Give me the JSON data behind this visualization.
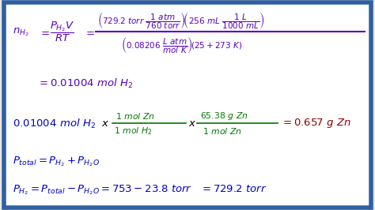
{
  "bg_color": "#e8e8e8",
  "border_color": "#3060a0",
  "inner_bg": "#ffffff",
  "purple": "#5500bb",
  "blue": "#0000cc",
  "green": "#007700",
  "red": "#880000",
  "figsize": [
    4.74,
    2.66
  ],
  "dpi": 100,
  "line1_parts": {
    "lhs": "$n_{H_2} = \\dfrac{P_{H_2}V}{RT} = $",
    "num": "$\\left(729.2\\ torr\\ \\dfrac{1\\ atm}{760\\ torr}\\right)\\!\\left(256\\ mL\\ \\dfrac{1\\ L}{1000\\ mL}\\right)$",
    "den": "$\\left(0.08206\\ \\dfrac{L\\ atm}{mol\\ K}\\right)\\!(25+273\\ K)$"
  },
  "line2": "$= 0.01004\\ mol\\ H_2$",
  "line3_blue": "$0.01004\\ mol\\ H_2$",
  "line3_x": "$x$",
  "line3_frac1_num": "$1\\ mol\\ Zn$",
  "line3_frac1_den": "$1\\ mol\\ H_2$",
  "line3_frac2_num": "$65.38\\ g\\ Zn$",
  "line3_frac2_den": "$1\\ mol\\ Zn$",
  "line3_result": "$= 0.657\\ g\\ Zn$",
  "line4": "$P_{total} = P_{H_2} + P_{H_2O}$",
  "line5": "$P_{H_2} = P_{total} - P_{H_2O} = 753 - 23.8\\ torr\\ \\ \\ = 729.2\\ torr$"
}
